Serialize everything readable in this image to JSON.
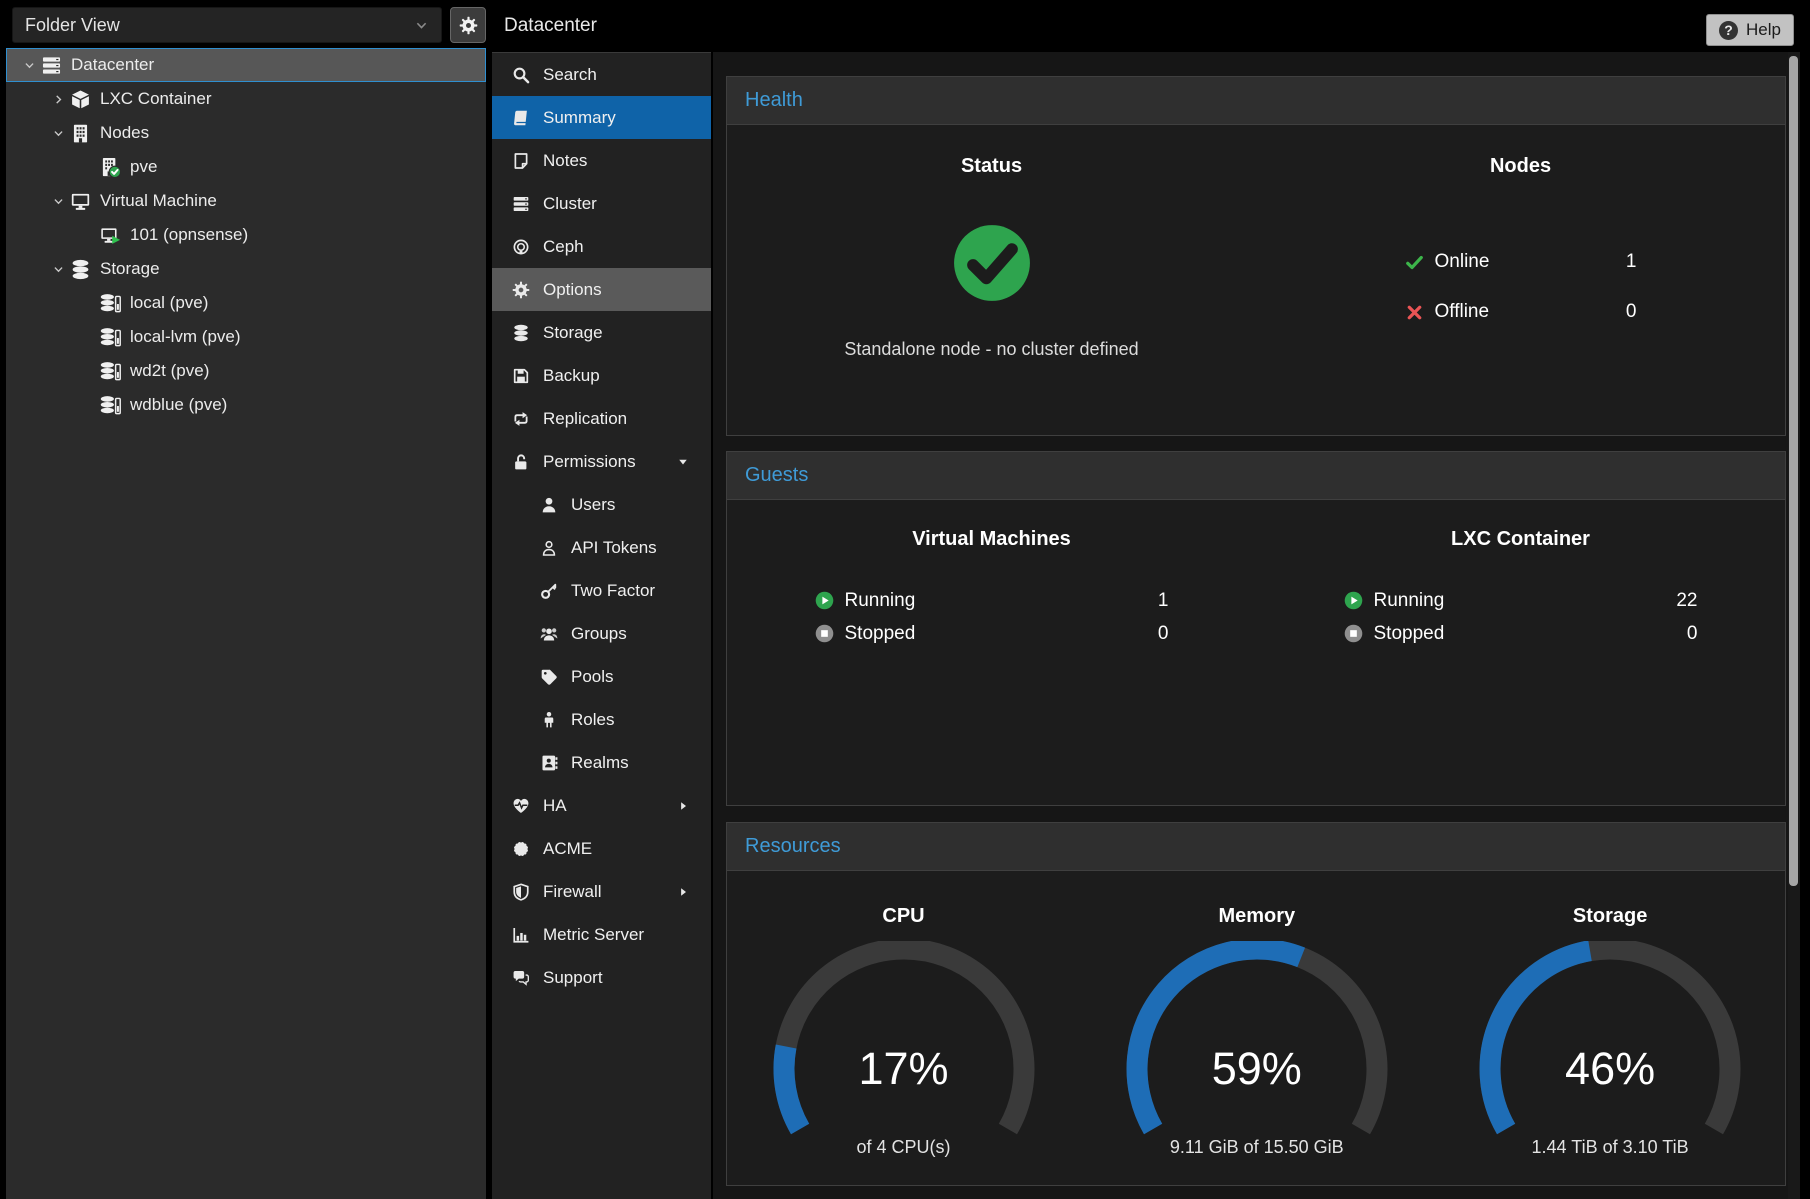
{
  "toolbar": {
    "folder_view": "Folder View",
    "help_label": "Help"
  },
  "nav": {
    "title": "Datacenter",
    "items": [
      {
        "label": "Search",
        "icon": "search"
      },
      {
        "label": "Summary",
        "icon": "book",
        "state": "selected"
      },
      {
        "label": "Notes",
        "icon": "note"
      },
      {
        "label": "Cluster",
        "icon": "server"
      },
      {
        "label": "Ceph",
        "icon": "ceph"
      },
      {
        "label": "Options",
        "icon": "gear",
        "state": "hover"
      },
      {
        "label": "Storage",
        "icon": "database"
      },
      {
        "label": "Backup",
        "icon": "floppy"
      },
      {
        "label": "Replication",
        "icon": "retweet"
      },
      {
        "label": "Permissions",
        "icon": "unlock",
        "arrow": "down"
      },
      {
        "label": "Users",
        "icon": "user",
        "indent": 1
      },
      {
        "label": "API Tokens",
        "icon": "user-o",
        "indent": 1
      },
      {
        "label": "Two Factor",
        "icon": "key",
        "indent": 1
      },
      {
        "label": "Groups",
        "icon": "users",
        "indent": 1
      },
      {
        "label": "Pools",
        "icon": "tag",
        "indent": 1
      },
      {
        "label": "Roles",
        "icon": "male",
        "indent": 1
      },
      {
        "label": "Realms",
        "icon": "address-book",
        "indent": 1
      },
      {
        "label": "HA",
        "icon": "heartbeat",
        "arrow": "right"
      },
      {
        "label": "ACME",
        "icon": "seal"
      },
      {
        "label": "Firewall",
        "icon": "shield",
        "arrow": "right"
      },
      {
        "label": "Metric Server",
        "icon": "bar-chart"
      },
      {
        "label": "Support",
        "icon": "comments"
      }
    ]
  },
  "sidebar": {
    "tree": [
      {
        "label": "Datacenter",
        "icon": "server",
        "depth": 0,
        "expander": "open",
        "selected": true
      },
      {
        "label": "LXC Container",
        "icon": "cube",
        "depth": 1,
        "expander": "closed"
      },
      {
        "label": "Nodes",
        "icon": "building",
        "depth": 1,
        "expander": "open"
      },
      {
        "label": "pve",
        "icon": "building-check",
        "depth": 2
      },
      {
        "label": "Virtual Machine",
        "icon": "desktop",
        "depth": 1,
        "expander": "open"
      },
      {
        "label": "101 (opnsense)",
        "icon": "desktop-play",
        "depth": 2
      },
      {
        "label": "Storage",
        "icon": "database",
        "depth": 1,
        "expander": "open"
      },
      {
        "label": "local (pve)",
        "icon": "storage-item",
        "depth": 2
      },
      {
        "label": "local-lvm (pve)",
        "icon": "storage-item",
        "depth": 2
      },
      {
        "label": "wd2t (pve)",
        "icon": "storage-item",
        "depth": 2
      },
      {
        "label": "wdblue (pve)",
        "icon": "storage-item",
        "depth": 2
      }
    ]
  },
  "main": {
    "health": {
      "title": "Health",
      "status_heading": "Status",
      "status_icon": "check-circle",
      "status_text": "Standalone node - no cluster defined",
      "nodes_heading": "Nodes",
      "rows": [
        {
          "icon": "check",
          "label": "Online",
          "value": "1"
        },
        {
          "icon": "cross",
          "label": "Offline",
          "value": "0"
        }
      ]
    },
    "guests": {
      "title": "Guests",
      "columns": [
        {
          "heading": "Virtual Machines",
          "rows": [
            {
              "icon": "play-circle",
              "label": "Running",
              "value": "1"
            },
            {
              "icon": "stop-circle",
              "label": "Stopped",
              "value": "0"
            }
          ]
        },
        {
          "heading": "LXC Container",
          "rows": [
            {
              "icon": "play-circle",
              "label": "Running",
              "value": "22"
            },
            {
              "icon": "stop-circle",
              "label": "Stopped",
              "value": "0"
            }
          ]
        }
      ]
    },
    "resources": {
      "title": "Resources",
      "gauges": [
        {
          "label": "CPU",
          "percent": 17,
          "display": "17%",
          "sub": "of 4 CPU(s)"
        },
        {
          "label": "Memory",
          "percent": 59,
          "display": "59%",
          "sub": "9.11 GiB of 15.50 GiB"
        },
        {
          "label": "Storage",
          "percent": 46,
          "display": "46%",
          "sub": "1.44 TiB of 3.10 TiB"
        }
      ]
    }
  },
  "colors": {
    "accent_blue": "#3f9bd7",
    "selected_blue": "#0f63a8",
    "hover_gray": "#5a5a5a",
    "green": "#2ea44e",
    "check_green": "#3cb54a",
    "cross_red": "#ea5455",
    "stop_gray": "#8f8f8f",
    "gauge_fill": "#1e6db6",
    "gauge_track": "#3a3a3a"
  }
}
